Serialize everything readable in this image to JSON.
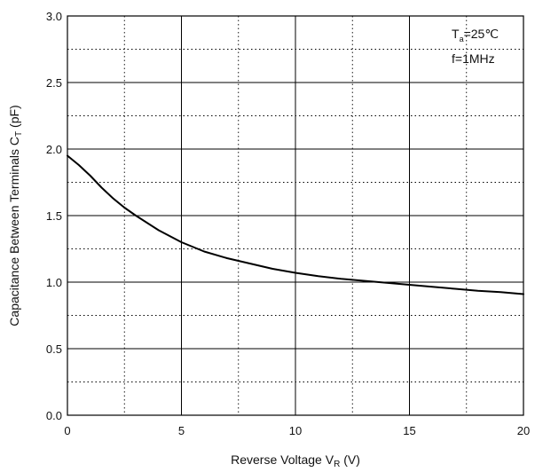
{
  "chart_data": {
    "type": "line",
    "xlabel": {
      "main": "Reverse Voltage V",
      "sub": "R",
      "unit": " (V)"
    },
    "ylabel": {
      "main": "Capacitance Between Terminals  C",
      "sub": "T",
      "unit": " (pF)"
    },
    "xlim": [
      0,
      20
    ],
    "ylim": [
      0,
      3
    ],
    "x_major_ticks": [
      0,
      5,
      10,
      15,
      20
    ],
    "y_major_ticks": [
      0,
      0.5,
      1,
      1.5,
      2,
      2.5,
      3
    ],
    "x_tick_labels": [
      "0",
      "5",
      "10",
      "15",
      "20"
    ],
    "y_tick_labels": [
      "0.0",
      "0.5",
      "1.0",
      "1.5",
      "2.0",
      "2.5",
      "3.0"
    ],
    "x_minor_ticks": [
      2.5,
      7.5,
      12.5,
      17.5
    ],
    "y_minor_ticks": [
      0.25,
      0.75,
      1.25,
      1.75,
      2.25,
      2.75
    ],
    "grid": true,
    "annotations": {
      "temp_main": "T",
      "temp_sub": "a",
      "temp_value": "=25℃",
      "freq": "f=1MHz"
    },
    "series": [
      {
        "x": [
          0,
          0.5,
          1,
          1.5,
          2,
          2.5,
          3,
          4,
          5,
          6,
          7,
          8,
          9,
          10,
          11,
          12,
          13,
          14,
          15,
          16,
          17,
          18,
          19,
          20
        ],
        "y": [
          1.95,
          1.88,
          1.8,
          1.71,
          1.63,
          1.56,
          1.5,
          1.39,
          1.3,
          1.23,
          1.18,
          1.14,
          1.1,
          1.07,
          1.045,
          1.025,
          1.01,
          0.995,
          0.98,
          0.965,
          0.95,
          0.935,
          0.925,
          0.91
        ]
      }
    ]
  }
}
